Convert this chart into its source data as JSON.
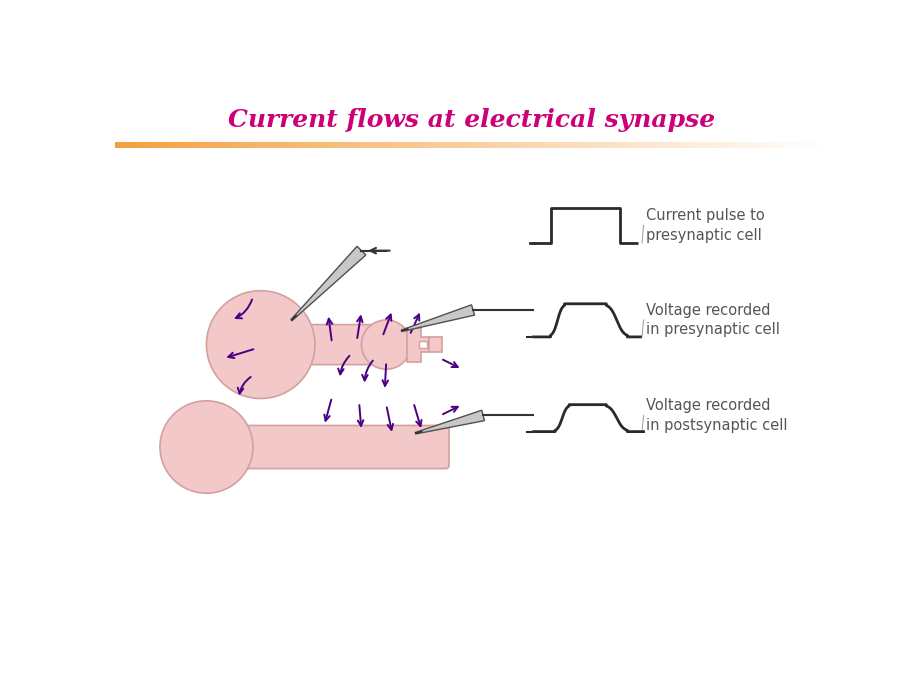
{
  "title": "Current flows at electrical synapse",
  "title_color": "#CC0077",
  "title_fontsize": 18,
  "bg_color": "#FFFFFF",
  "cell_color": "#F2C8C8",
  "cell_edge_color": "#D4A0A0",
  "arrow_color": "#4B0082",
  "signal_color": "#2a2a2a",
  "label1": "Current pulse to\npresynaptic cell",
  "label2": "Voltage recorded\nin presynaptic cell",
  "label3": "Voltage recorded\nin postsynaptic cell",
  "label_fontsize": 10.5,
  "orange_bar_left": "#F5A040",
  "orange_bar_right": "#FFFFFF"
}
